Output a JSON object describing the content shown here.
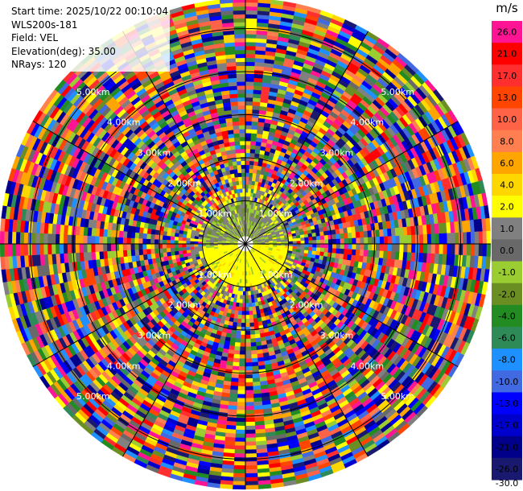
{
  "header": {
    "start_time": "Start time: 2025/10/22 00:10:04",
    "site": "WLS200s-181",
    "field": "Field: VEL",
    "elevation": "Elevation(deg): 35.00",
    "nrays": "NRays: 120"
  },
  "chart_data": {
    "type": "heatmap",
    "projection": "polar-ppi",
    "n_rays": 120,
    "range_rings_km": [
      1.0,
      2.0,
      3.0,
      4.0,
      5.0
    ],
    "ring_labels": [
      "1.00km",
      "2.00km",
      "3.00km",
      "4.00km",
      "5.00km"
    ],
    "spokes": 12,
    "colorbar": {
      "unit": "m/s",
      "ticks": [
        "26.0",
        "21.0",
        "17.0",
        "13.0",
        "10.0",
        "8.0",
        "6.0",
        "4.0",
        "2.0",
        "1.0",
        "0.0",
        "-1.0",
        "-2.0",
        "-4.0",
        "-6.0",
        "-8.0",
        "-10.0",
        "-13.0",
        "-17.0",
        "-21.0",
        "-26.0",
        "-30.0"
      ],
      "colors": [
        "#ff1493",
        "#ff0000",
        "#ff2f2f",
        "#ff4500",
        "#ff6347",
        "#ff7f50",
        "#ffa500",
        "#ffd700",
        "#ffff00",
        "#808080",
        "#696969",
        "#9acd32",
        "#6b8e23",
        "#228b22",
        "#2e8b57",
        "#1e90ff",
        "#4169e1",
        "#0000ff",
        "#0000cd",
        "#00008b",
        "#191970"
      ]
    }
  }
}
